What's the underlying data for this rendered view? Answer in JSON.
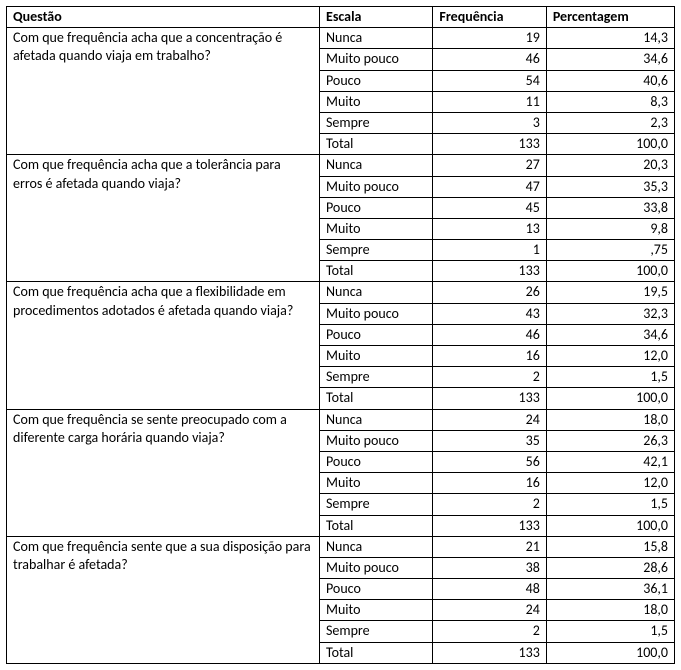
{
  "headers": {
    "question": "Questão",
    "scale": "Escala",
    "frequency": "Frequência",
    "percentage": "Percentagem"
  },
  "groups": [
    {
      "question": "Com que frequência acha que a concentração é afetada quando viaja em trabalho?",
      "rows": [
        {
          "scale": "Nunca",
          "freq": "19",
          "pct": "14,3"
        },
        {
          "scale": "Muito pouco",
          "freq": "46",
          "pct": "34,6"
        },
        {
          "scale": "Pouco",
          "freq": "54",
          "pct": "40,6"
        },
        {
          "scale": "Muito",
          "freq": "11",
          "pct": "8,3"
        },
        {
          "scale": "Sempre",
          "freq": "3",
          "pct": "2,3"
        },
        {
          "scale": "Total",
          "freq": "133",
          "pct": "100,0"
        }
      ]
    },
    {
      "question": "Com que frequência acha que a tolerância para erros é afetada quando viaja?",
      "rows": [
        {
          "scale": "Nunca",
          "freq": "27",
          "pct": "20,3"
        },
        {
          "scale": "Muito pouco",
          "freq": "47",
          "pct": "35,3"
        },
        {
          "scale": "Pouco",
          "freq": "45",
          "pct": "33,8"
        },
        {
          "scale": "Muito",
          "freq": "13",
          "pct": "9,8"
        },
        {
          "scale": "Sempre",
          "freq": "1",
          "pct": ",75"
        },
        {
          "scale": "Total",
          "freq": "133",
          "pct": "100,0"
        }
      ]
    },
    {
      "question": "Com que frequência acha que a flexibilidade em procedimentos adotados é afetada quando viaja?",
      "rows": [
        {
          "scale": "Nunca",
          "freq": "26",
          "pct": "19,5"
        },
        {
          "scale": "Muito pouco",
          "freq": "43",
          "pct": "32,3"
        },
        {
          "scale": "Pouco",
          "freq": "46",
          "pct": "34,6"
        },
        {
          "scale": "Muito",
          "freq": "16",
          "pct": "12,0"
        },
        {
          "scale": "Sempre",
          "freq": "2",
          "pct": "1,5"
        },
        {
          "scale": "Total",
          "freq": "133",
          "pct": "100,0"
        }
      ]
    },
    {
      "question": "Com que frequência se sente preocupado com a diferente carga horária quando viaja?",
      "rows": [
        {
          "scale": "Nunca",
          "freq": "24",
          "pct": "18,0"
        },
        {
          "scale": "Muito pouco",
          "freq": "35",
          "pct": "26,3"
        },
        {
          "scale": "Pouco",
          "freq": "56",
          "pct": "42,1"
        },
        {
          "scale": "Muito",
          "freq": "16",
          "pct": "12,0"
        },
        {
          "scale": "Sempre",
          "freq": "2",
          "pct": "1,5"
        },
        {
          "scale": "Total",
          "freq": "133",
          "pct": "100,0"
        }
      ]
    },
    {
      "question": "Com que frequência sente que a sua disposição para trabalhar é afetada?",
      "rows": [
        {
          "scale": "Nunca",
          "freq": "21",
          "pct": "15,8"
        },
        {
          "scale": "Muito pouco",
          "freq": "38",
          "pct": "28,6"
        },
        {
          "scale": "Pouco",
          "freq": "48",
          "pct": "36,1"
        },
        {
          "scale": "Muito",
          "freq": "24",
          "pct": "18,0"
        },
        {
          "scale": "Sempre",
          "freq": "2",
          "pct": "1,5"
        },
        {
          "scale": "Total",
          "freq": "133",
          "pct": "100,0"
        }
      ]
    }
  ]
}
